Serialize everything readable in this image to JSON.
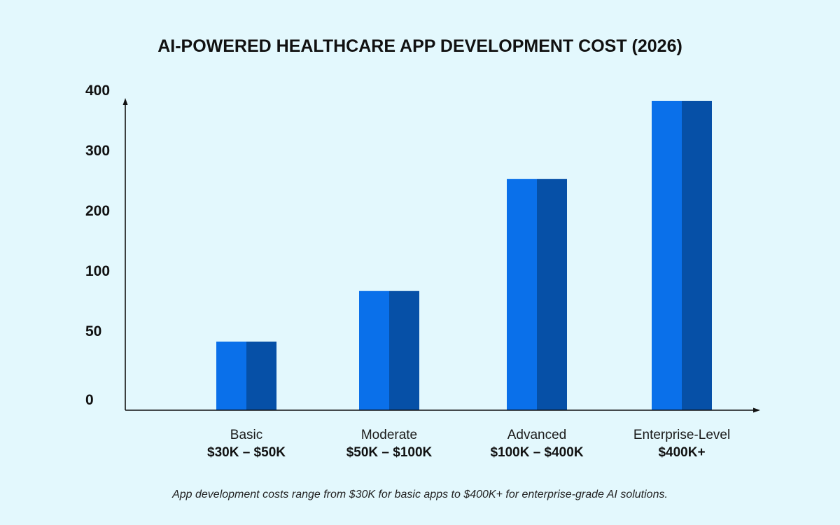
{
  "chart_data": {
    "type": "bar",
    "title": "AI-POWERED HEALTHCARE APP DEVELOPMENT COST (2026)",
    "categories": [
      {
        "name": "Basic",
        "range": "$30K – $50K"
      },
      {
        "name": "Moderate",
        "range": "$50K – $100K"
      },
      {
        "name": "Advanced",
        "range": "$100K – $400K"
      },
      {
        "name": "Enterprise-Level",
        "range": "$400K+"
      }
    ],
    "values": [
      50,
      92,
      270,
      400
    ],
    "y_ticks": [
      {
        "label": "0",
        "value": 0
      },
      {
        "label": "50",
        "value": 50
      },
      {
        "label": "100",
        "value": 100
      },
      {
        "label": "200",
        "value": 200
      },
      {
        "label": "300",
        "value": 300
      },
      {
        "label": "400",
        "value": 400
      }
    ],
    "y_scale": "piecewise: 0–100 compressed, 100–400 linear",
    "ylim": [
      0,
      400
    ],
    "grid": false,
    "legend": "none",
    "colors": {
      "bar_light": "#0a70ea",
      "bar_dark": "#0650a7",
      "background": "#e3f8fd"
    }
  },
  "caption": "App development costs range from $30K for basic apps to $400K+ for enterprise-grade AI solutions."
}
